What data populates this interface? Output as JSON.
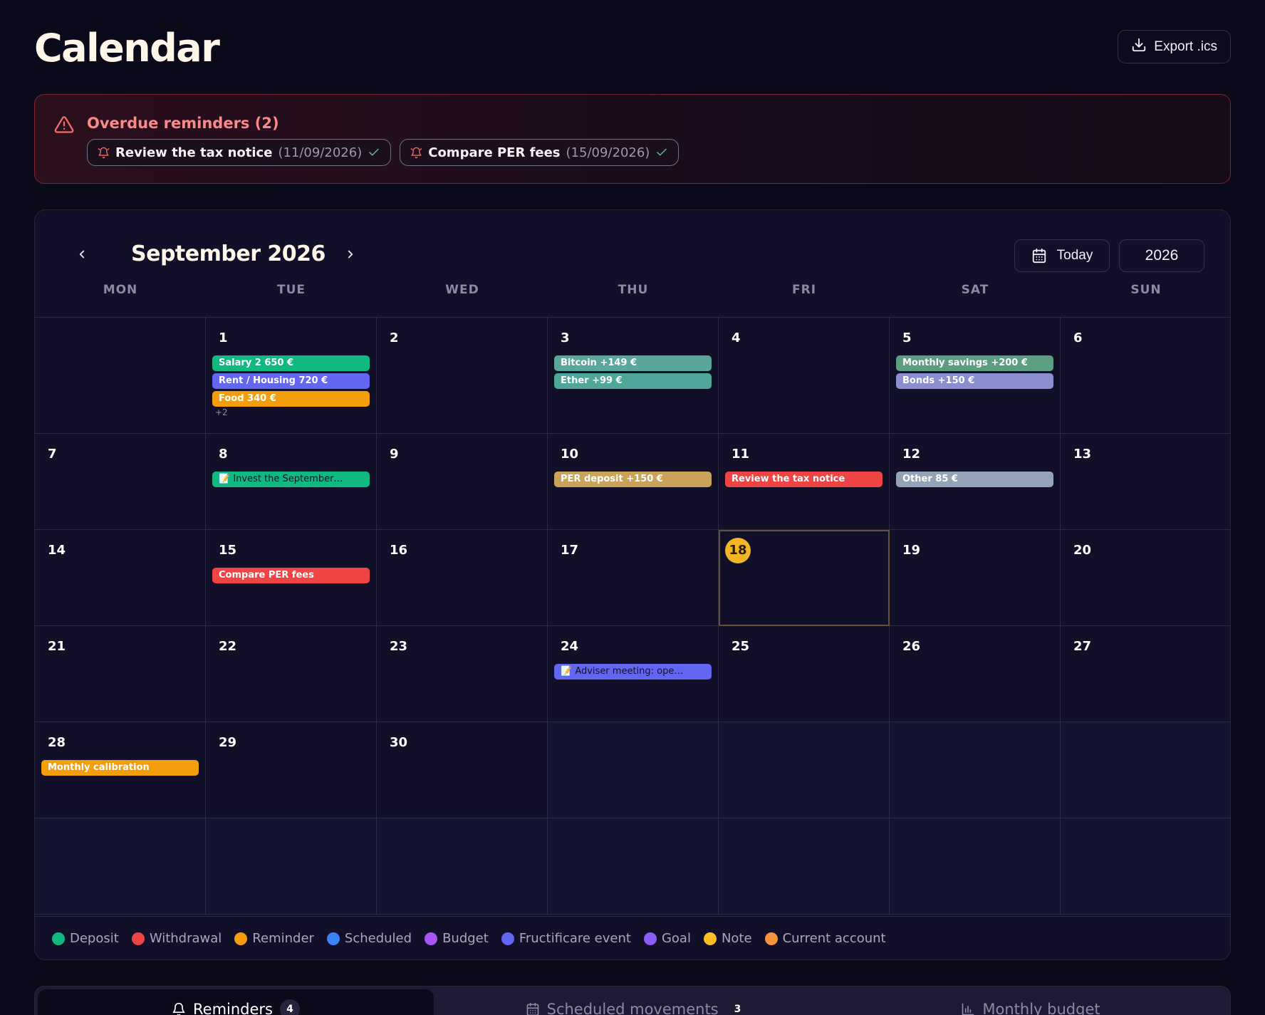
{
  "header": {
    "title": "Calendar",
    "export_label": "Export .ics"
  },
  "overdue": {
    "title": "Overdue reminders (2)",
    "items": [
      {
        "title": "Review the tax notice",
        "date": "(11/09/2026)"
      },
      {
        "title": "Compare PER fees",
        "date": "(15/09/2026)"
      }
    ]
  },
  "calendar": {
    "month_title": "September 2026",
    "today_label": "Today",
    "year_label": "2026",
    "weekdays": [
      "MON",
      "TUE",
      "WED",
      "THU",
      "FRI",
      "SAT",
      "SUN"
    ],
    "today": 18,
    "cells": [
      {
        "day": "",
        "events": []
      },
      {
        "day": "1",
        "events": [
          {
            "label": "Salary 2 650 €",
            "color": "#10b981"
          },
          {
            "label": "Rent / Housing 720 €",
            "color": "#6366f1"
          },
          {
            "label": "Food 340 €",
            "color": "#f59e0b"
          }
        ],
        "more": "+2"
      },
      {
        "day": "2",
        "events": []
      },
      {
        "day": "3",
        "events": [
          {
            "label": "Bitcoin +149 €",
            "color": "#5aa69c"
          },
          {
            "label": "Ether +99 €",
            "color": "#4fa79a"
          }
        ]
      },
      {
        "day": "4",
        "events": []
      },
      {
        "day": "5",
        "events": [
          {
            "label": "Monthly savings +200 €",
            "color": "#5b9e81"
          },
          {
            "label": "Bonds +150 €",
            "color": "#8a8dce"
          }
        ]
      },
      {
        "day": "6",
        "events": []
      },
      {
        "day": "7",
        "events": []
      },
      {
        "day": "8",
        "events": [
          {
            "label": "📝 Invest the September…",
            "color": "#10b981",
            "dim": true
          }
        ]
      },
      {
        "day": "9",
        "events": []
      },
      {
        "day": "10",
        "events": [
          {
            "label": "PER deposit +150 €",
            "color": "#c9a35a"
          }
        ]
      },
      {
        "day": "11",
        "events": [
          {
            "label": "Review the tax notice",
            "color": "#ef4444"
          }
        ]
      },
      {
        "day": "12",
        "events": [
          {
            "label": "Other 85 €",
            "color": "#94a3b8"
          }
        ]
      },
      {
        "day": "13",
        "events": []
      },
      {
        "day": "14",
        "events": []
      },
      {
        "day": "15",
        "events": [
          {
            "label": "Compare PER fees",
            "color": "#ef4444"
          }
        ]
      },
      {
        "day": "16",
        "events": []
      },
      {
        "day": "17",
        "events": []
      },
      {
        "day": "18",
        "events": []
      },
      {
        "day": "19",
        "events": []
      },
      {
        "day": "20",
        "events": []
      },
      {
        "day": "21",
        "events": []
      },
      {
        "day": "22",
        "events": []
      },
      {
        "day": "23",
        "events": []
      },
      {
        "day": "24",
        "events": [
          {
            "label": "📝 Adviser meeting: ope…",
            "color": "#6366f1",
            "dim": true
          }
        ]
      },
      {
        "day": "25",
        "events": []
      },
      {
        "day": "26",
        "events": []
      },
      {
        "day": "27",
        "events": []
      },
      {
        "day": "28",
        "events": [
          {
            "label": "Monthly calibration",
            "color": "#f59e0b"
          }
        ]
      },
      {
        "day": "29",
        "events": []
      },
      {
        "day": "30",
        "events": []
      },
      {
        "day": "",
        "events": [],
        "outside": true
      },
      {
        "day": "",
        "events": [],
        "outside": true
      },
      {
        "day": "",
        "events": [],
        "outside": true
      },
      {
        "day": "",
        "events": [],
        "outside": true
      },
      {
        "day": "",
        "events": [],
        "outside": true
      },
      {
        "day": "",
        "events": [],
        "outside": true
      },
      {
        "day": "",
        "events": [],
        "outside": true
      },
      {
        "day": "",
        "events": [],
        "outside": true
      },
      {
        "day": "",
        "events": [],
        "outside": true
      },
      {
        "day": "",
        "events": [],
        "outside": true
      },
      {
        "day": "",
        "events": [],
        "outside": true
      }
    ]
  },
  "legend": [
    {
      "label": "Deposit",
      "color": "#10b981"
    },
    {
      "label": "Withdrawal",
      "color": "#ef4444"
    },
    {
      "label": "Reminder",
      "color": "#f59e0b"
    },
    {
      "label": "Scheduled",
      "color": "#3b82f6"
    },
    {
      "label": "Budget",
      "color": "#a855f7"
    },
    {
      "label": "Fructificare event",
      "color": "#6366f1"
    },
    {
      "label": "Goal",
      "color": "#8b5cf6"
    },
    {
      "label": "Note",
      "color": "#fbbf24"
    },
    {
      "label": "Current account",
      "color": "#fb923c"
    }
  ],
  "tabs": [
    {
      "label": "Reminders",
      "badge": "4",
      "icon": "bell-icon",
      "active": true
    },
    {
      "label": "Scheduled movements",
      "badge": "3",
      "icon": "calendar-icon",
      "active": false
    },
    {
      "label": "Monthly budget",
      "badge": "",
      "icon": "bar-chart-icon",
      "active": false
    }
  ]
}
